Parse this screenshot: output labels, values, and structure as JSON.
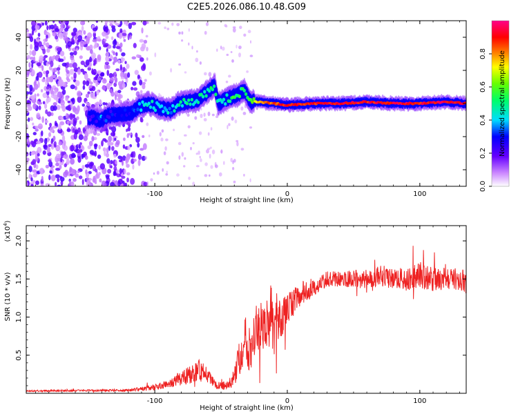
{
  "title": "C2E5.2026.086.10.48.G09",
  "chart_data": [
    {
      "type": "heatmap",
      "xlabel": "Height of straight line (km)",
      "ylabel": "Frequency (Hz)",
      "xlim": [
        -197,
        135
      ],
      "ylim": [
        -50,
        50
      ],
      "xticks": [
        -100,
        0,
        100
      ],
      "yticks": [
        -40,
        -20,
        0,
        20,
        40
      ],
      "colorbar": {
        "label": "Normalized spectral amplitude",
        "range": [
          0,
          1
        ],
        "ticks": [
          "0.0",
          "0.2",
          "0.4",
          "0.6",
          "0.8"
        ],
        "tick_values": [
          0.0,
          0.2,
          0.4,
          0.6,
          0.8
        ]
      },
      "ridge": [
        {
          "x": -150,
          "y": -8,
          "amp": 0.2
        },
        {
          "x": -145,
          "y": -9,
          "amp": 0.25
        },
        {
          "x": -140,
          "y": -10,
          "amp": 0.35
        },
        {
          "x": -135,
          "y": -7,
          "amp": 0.25
        },
        {
          "x": -118,
          "y": -6,
          "amp": 0.3
        },
        {
          "x": -112,
          "y": -2,
          "amp": 0.35
        },
        {
          "x": -105,
          "y": 0,
          "amp": 0.45
        },
        {
          "x": -95,
          "y": -3,
          "amp": 0.45
        },
        {
          "x": -88,
          "y": -4,
          "amp": 0.4
        },
        {
          "x": -82,
          "y": 0,
          "amp": 0.45
        },
        {
          "x": -75,
          "y": 1,
          "amp": 0.5
        },
        {
          "x": -68,
          "y": 2,
          "amp": 0.45
        },
        {
          "x": -60,
          "y": 7,
          "amp": 0.5
        },
        {
          "x": -55,
          "y": 11,
          "amp": 0.55
        },
        {
          "x": -52,
          "y": 0,
          "amp": 0.45
        },
        {
          "x": -45,
          "y": 3,
          "amp": 0.5
        },
        {
          "x": -38,
          "y": 5,
          "amp": 0.55
        },
        {
          "x": -32,
          "y": 8,
          "amp": 0.5
        },
        {
          "x": -28,
          "y": 1,
          "amp": 0.55
        },
        {
          "x": -22,
          "y": 1,
          "amp": 0.75
        },
        {
          "x": -10,
          "y": 0,
          "amp": 0.85
        },
        {
          "x": 0,
          "y": -1,
          "amp": 0.9
        },
        {
          "x": 20,
          "y": 0,
          "amp": 0.9
        },
        {
          "x": 40,
          "y": 0,
          "amp": 0.92
        },
        {
          "x": 60,
          "y": 1,
          "amp": 0.9
        },
        {
          "x": 80,
          "y": 0,
          "amp": 0.92
        },
        {
          "x": 100,
          "y": 0,
          "amp": 0.9
        },
        {
          "x": 120,
          "y": 1,
          "amp": 0.92
        },
        {
          "x": 135,
          "y": 0,
          "amp": 0.9
        }
      ]
    },
    {
      "type": "line",
      "xlabel": "Height of straight line (km)",
      "ylabel": "SNR (10 * v/v)",
      "yscale_label": "(x10^4)",
      "xlim": [
        -197,
        135
      ],
      "ylim": [
        0,
        2.2
      ],
      "xticks": [
        -100,
        0,
        100
      ],
      "yticks": [
        "0.5",
        "1.0",
        "1.5",
        "2.0"
      ],
      "ytick_values": [
        0.5,
        1.0,
        1.5,
        2.0
      ],
      "series": [
        {
          "name": "SNR",
          "color": "#ee2222",
          "envelope": {
            "x": [
              -197,
              -120,
              -108,
              -100,
              -90,
              -80,
              -72,
              -66,
              -60,
              -55,
              -50,
              -45,
              -40,
              -36,
              -32,
              -28,
              -24,
              -20,
              -16,
              -12,
              -10,
              -8,
              -4,
              0,
              5,
              10,
              15,
              20,
              30,
              40,
              50,
              60,
              70,
              80,
              90,
              100,
              110,
              120,
              130,
              135
            ],
            "mean": [
              0.03,
              0.04,
              0.06,
              0.08,
              0.12,
              0.2,
              0.25,
              0.3,
              0.22,
              0.12,
              0.1,
              0.1,
              0.2,
              0.5,
              0.8,
              0.55,
              0.9,
              0.95,
              0.9,
              1.05,
              0.8,
              1.0,
              1.0,
              1.1,
              1.2,
              1.3,
              1.35,
              1.4,
              1.5,
              1.5,
              1.5,
              1.5,
              1.55,
              1.5,
              1.5,
              1.55,
              1.5,
              1.5,
              1.5,
              1.45
            ],
            "spread": [
              0.01,
              0.015,
              0.03,
              0.04,
              0.05,
              0.1,
              0.12,
              0.15,
              0.1,
              0.06,
              0.05,
              0.05,
              0.12,
              0.3,
              0.35,
              0.3,
              0.35,
              0.4,
              0.35,
              0.4,
              0.35,
              0.35,
              0.25,
              0.2,
              0.18,
              0.15,
              0.15,
              0.12,
              0.1,
              0.1,
              0.12,
              0.12,
              0.14,
              0.14,
              0.15,
              0.18,
              0.16,
              0.15,
              0.15,
              0.15
            ]
          }
        }
      ]
    }
  ]
}
